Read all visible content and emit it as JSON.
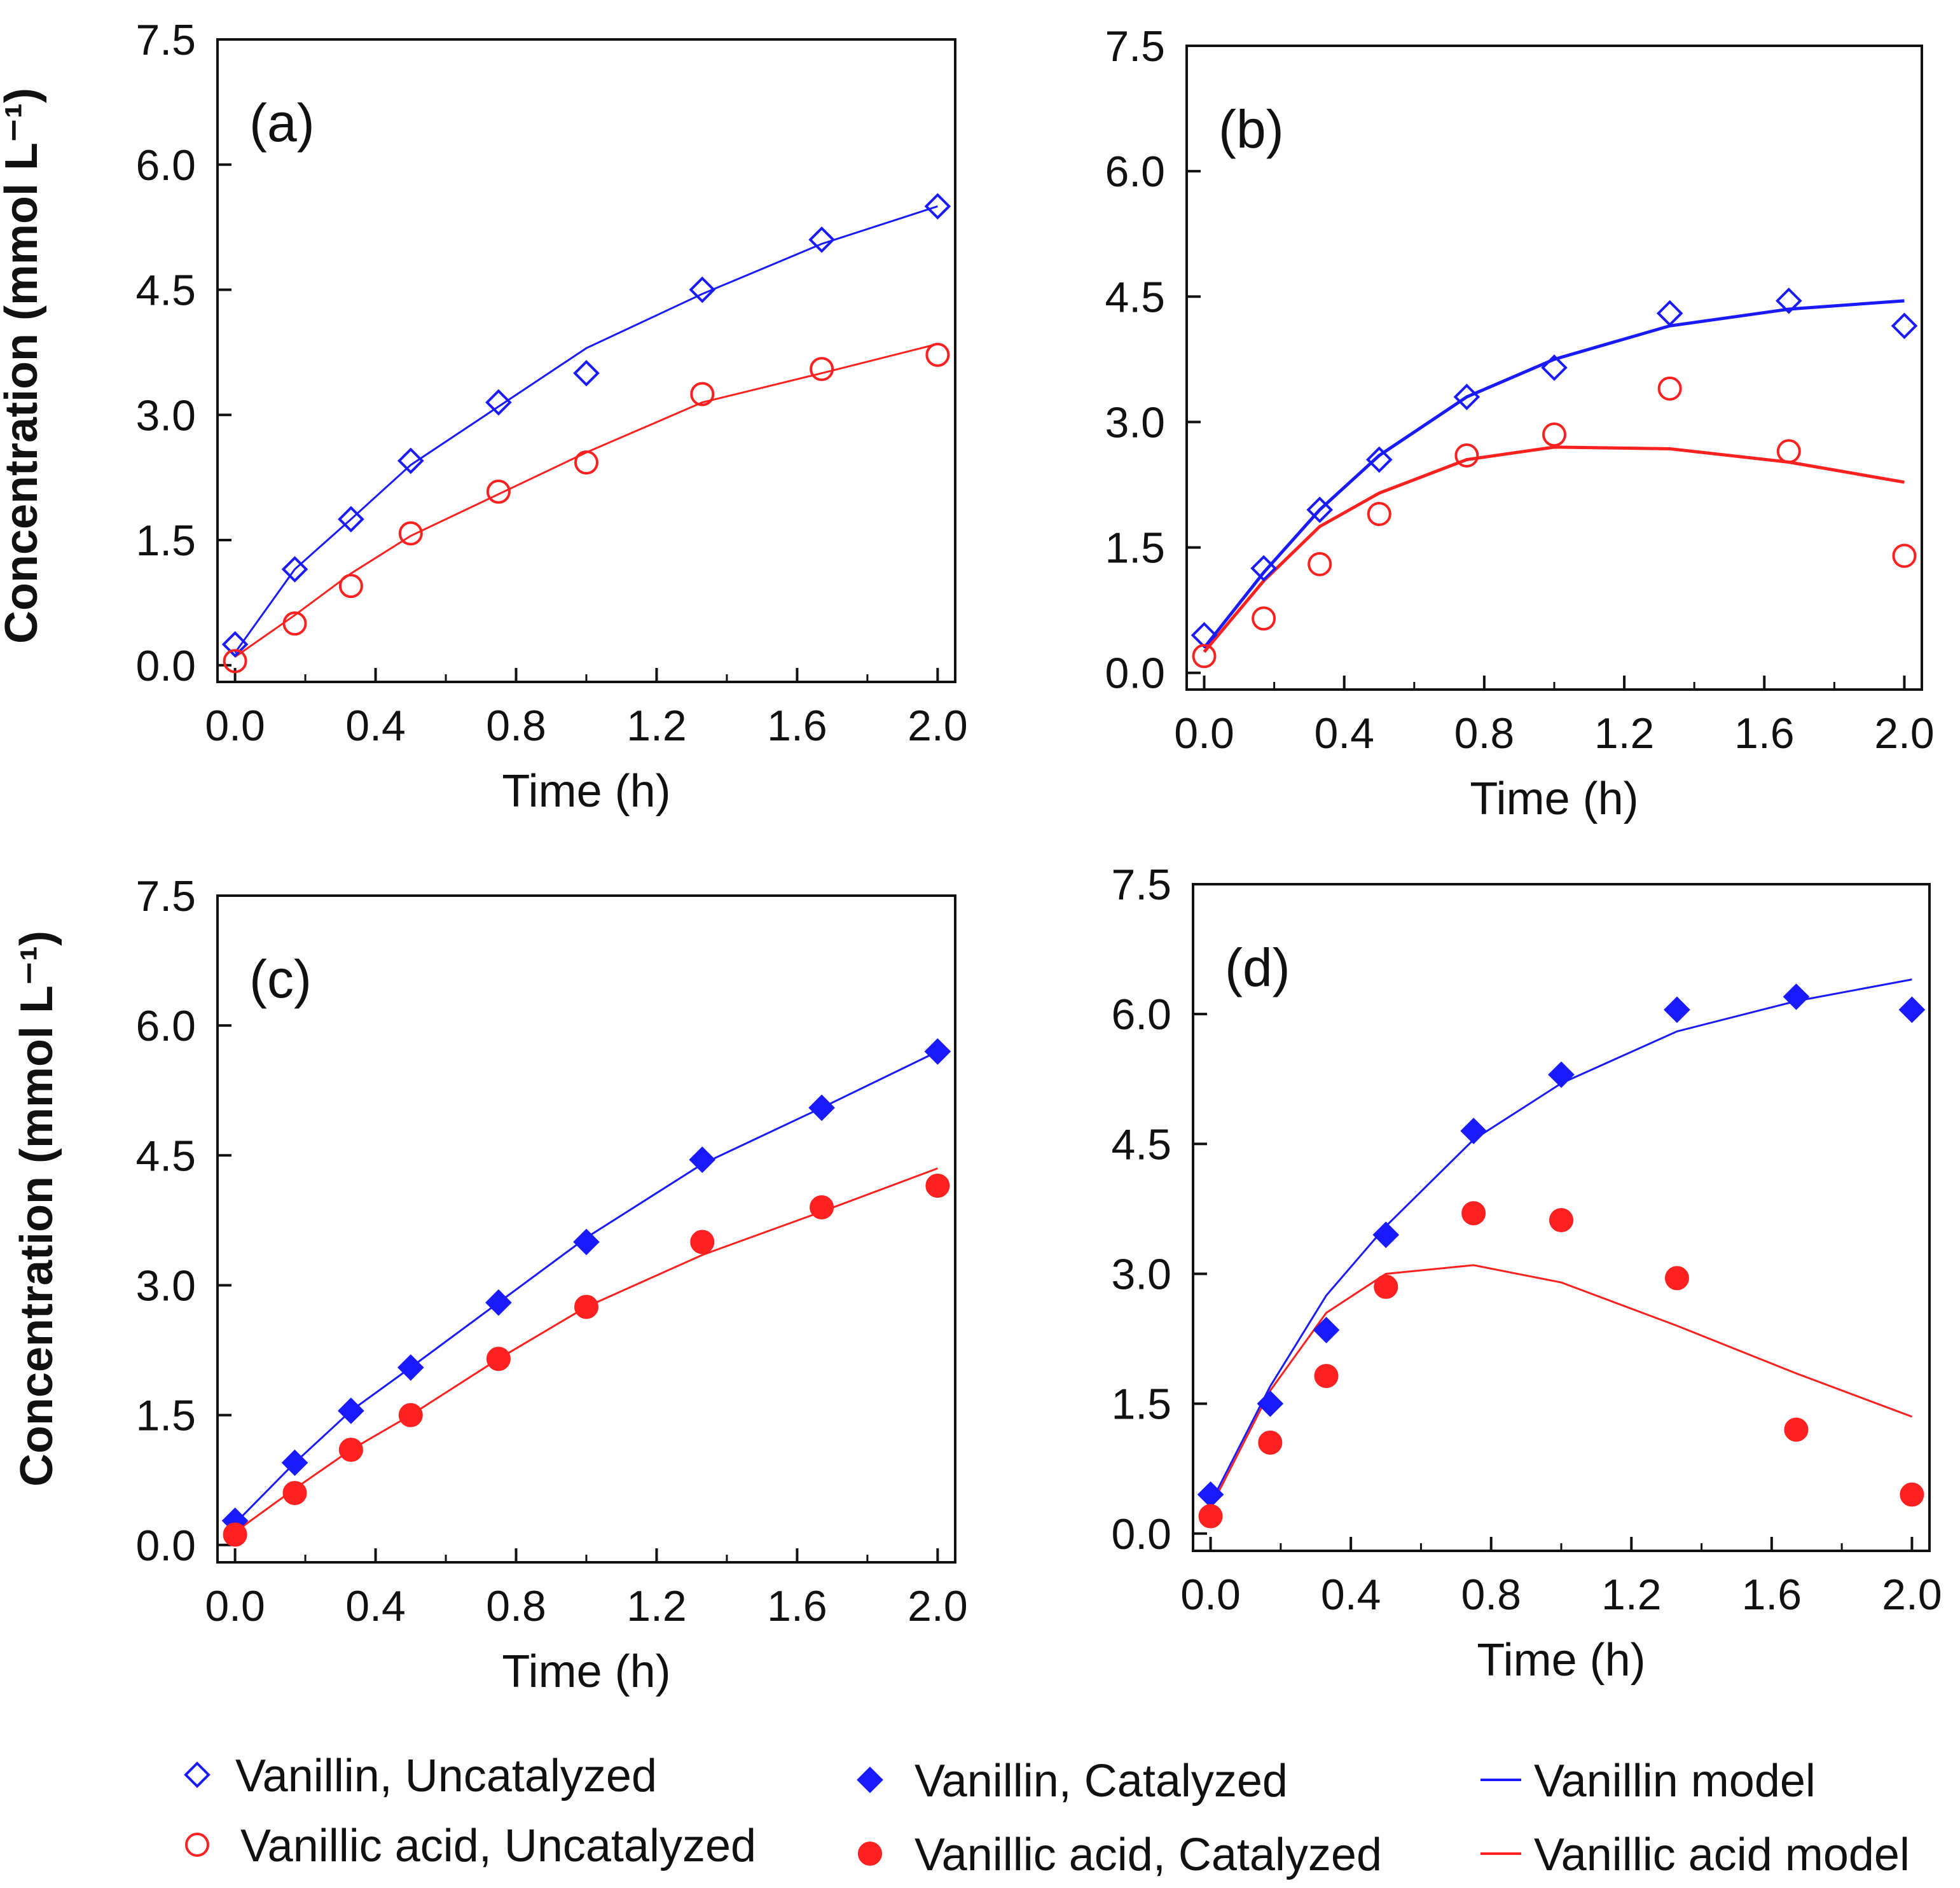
{
  "chart_data": [
    {
      "type": "scatter",
      "panel_label": "(a)",
      "xlabel": "Time (h)",
      "ylabel": "Concentration (mmol L⁻¹)",
      "xlim": [
        -0.05,
        2.05
      ],
      "ylim": [
        -0.2,
        7.5
      ],
      "xticks": [
        "0.0",
        "0.4",
        "0.8",
        "1.2",
        "1.6",
        "2.0"
      ],
      "yticks": [
        "0.0",
        "1.5",
        "3.0",
        "4.5",
        "6.0",
        "7.5"
      ],
      "series": [
        {
          "name": "Vanillin, Uncatalyzed",
          "style": "open-diamond",
          "color": "#1a1aff",
          "x": [
            0.0,
            0.17,
            0.33,
            0.5,
            0.75,
            1.0,
            1.33,
            1.67,
            2.0
          ],
          "y": [
            0.25,
            1.15,
            1.75,
            2.45,
            3.15,
            3.5,
            4.5,
            5.1,
            5.5
          ]
        },
        {
          "name": "Vanillic acid, Uncatalyzed",
          "style": "open-circle",
          "color": "#ff2020",
          "x": [
            0.0,
            0.17,
            0.33,
            0.5,
            0.75,
            1.0,
            1.33,
            1.67,
            2.0
          ],
          "y": [
            0.05,
            0.5,
            0.95,
            1.58,
            2.08,
            2.43,
            3.25,
            3.55,
            3.72
          ]
        },
        {
          "name": "Vanillin model",
          "style": "line",
          "color": "#1a1aff",
          "x": [
            0.0,
            0.17,
            0.33,
            0.5,
            0.75,
            1.0,
            1.33,
            1.67,
            2.0
          ],
          "y": [
            0.15,
            1.15,
            1.75,
            2.4,
            3.1,
            3.8,
            4.45,
            5.05,
            5.5
          ]
        },
        {
          "name": "Vanillic acid model",
          "style": "line",
          "color": "#ff2020",
          "x": [
            0.0,
            0.17,
            0.33,
            0.5,
            0.75,
            1.0,
            1.33,
            1.67,
            2.0
          ],
          "y": [
            0.1,
            0.6,
            1.1,
            1.55,
            2.05,
            2.55,
            3.15,
            3.5,
            3.85
          ]
        }
      ]
    },
    {
      "type": "scatter",
      "panel_label": "(b)",
      "xlabel": "Time (h)",
      "ylabel": "",
      "xlim": [
        -0.05,
        2.05
      ],
      "ylim": [
        -0.2,
        7.5
      ],
      "xticks": [
        "0.0",
        "0.4",
        "0.8",
        "1.2",
        "1.6",
        "2.0"
      ],
      "yticks": [
        "0.0",
        "1.5",
        "3.0",
        "4.5",
        "6.0",
        "7.5"
      ],
      "series": [
        {
          "name": "Vanillin, Uncatalyzed",
          "style": "open-diamond",
          "color": "#1a1aff",
          "x": [
            0.0,
            0.17,
            0.33,
            0.5,
            0.75,
            1.0,
            1.33,
            1.67,
            2.0
          ],
          "y": [
            0.45,
            1.25,
            1.95,
            2.55,
            3.3,
            3.65,
            4.3,
            4.45,
            4.15
          ]
        },
        {
          "name": "Vanillic acid, Uncatalyzed",
          "style": "open-circle",
          "color": "#ff2020",
          "x": [
            0.0,
            0.17,
            0.33,
            0.5,
            0.75,
            1.0,
            1.33,
            1.67,
            2.0
          ],
          "y": [
            0.2,
            0.65,
            1.3,
            1.9,
            2.6,
            2.85,
            3.4,
            2.65,
            1.4
          ]
        },
        {
          "name": "Vanillin model",
          "style": "line",
          "color": "#1a1aff",
          "x": [
            0.0,
            0.17,
            0.33,
            0.5,
            0.75,
            1.0,
            1.33,
            1.67,
            2.0
          ],
          "y": [
            0.3,
            1.2,
            1.95,
            2.6,
            3.3,
            3.75,
            4.15,
            4.35,
            4.45
          ]
        },
        {
          "name": "Vanillic acid model",
          "style": "line",
          "color": "#ff2020",
          "x": [
            0.0,
            0.17,
            0.33,
            0.5,
            0.75,
            1.0,
            1.33,
            1.67,
            2.0
          ],
          "y": [
            0.25,
            1.1,
            1.75,
            2.15,
            2.55,
            2.7,
            2.68,
            2.52,
            2.28
          ]
        }
      ]
    },
    {
      "type": "scatter",
      "panel_label": "(c)",
      "xlabel": "Time (h)",
      "ylabel": "Concentration (mmol L⁻¹)",
      "xlim": [
        -0.05,
        2.05
      ],
      "ylim": [
        -0.2,
        7.5
      ],
      "xticks": [
        "0.0",
        "0.4",
        "0.8",
        "1.2",
        "1.6",
        "2.0"
      ],
      "yticks": [
        "0.0",
        "1.5",
        "3.0",
        "4.5",
        "6.0",
        "7.5"
      ],
      "series": [
        {
          "name": "Vanillin, Catalyzed",
          "style": "filled-diamond",
          "color": "#1a1aff",
          "x": [
            0.0,
            0.17,
            0.33,
            0.5,
            0.75,
            1.0,
            1.33,
            1.67,
            2.0
          ],
          "y": [
            0.28,
            0.95,
            1.55,
            2.05,
            2.8,
            3.5,
            4.45,
            5.05,
            5.7
          ]
        },
        {
          "name": "Vanillic acid, Catalyzed",
          "style": "filled-circle",
          "color": "#ff2020",
          "x": [
            0.0,
            0.17,
            0.33,
            0.5,
            0.75,
            1.0,
            1.33,
            1.67,
            2.0
          ],
          "y": [
            0.12,
            0.6,
            1.1,
            1.5,
            2.15,
            2.75,
            3.5,
            3.9,
            4.15
          ]
        },
        {
          "name": "Vanillin model",
          "style": "line",
          "color": "#1a1aff",
          "x": [
            0.0,
            0.17,
            0.33,
            0.5,
            0.75,
            1.0,
            1.33,
            1.67,
            2.0
          ],
          "y": [
            0.25,
            0.95,
            1.55,
            2.05,
            2.8,
            3.55,
            4.4,
            5.05,
            5.7
          ]
        },
        {
          "name": "Vanillic acid model",
          "style": "line",
          "color": "#ff2020",
          "x": [
            0.0,
            0.17,
            0.33,
            0.5,
            0.75,
            1.0,
            1.33,
            1.67,
            2.0
          ],
          "y": [
            0.15,
            0.65,
            1.1,
            1.5,
            2.15,
            2.75,
            3.35,
            3.85,
            4.35
          ]
        }
      ]
    },
    {
      "type": "scatter",
      "panel_label": "(d)",
      "xlabel": "Time (h)",
      "ylabel": "",
      "xlim": [
        -0.05,
        2.05
      ],
      "ylim": [
        -0.2,
        7.5
      ],
      "xticks": [
        "0.0",
        "0.4",
        "0.8",
        "1.2",
        "1.6",
        "2.0"
      ],
      "yticks": [
        "0.0",
        "1.5",
        "3.0",
        "4.5",
        "6.0",
        "7.5"
      ],
      "series": [
        {
          "name": "Vanillin, Catalyzed",
          "style": "filled-diamond",
          "color": "#1a1aff",
          "x": [
            0.0,
            0.17,
            0.33,
            0.5,
            0.75,
            1.0,
            1.33,
            1.67,
            2.0
          ],
          "y": [
            0.45,
            1.5,
            2.35,
            3.45,
            4.65,
            5.3,
            6.05,
            6.2,
            6.05
          ]
        },
        {
          "name": "Vanillic acid, Catalyzed",
          "style": "filled-circle",
          "color": "#ff2020",
          "x": [
            0.0,
            0.17,
            0.33,
            0.5,
            0.75,
            1.0,
            1.33,
            1.67,
            2.0
          ],
          "y": [
            0.2,
            1.05,
            1.82,
            2.85,
            3.7,
            3.62,
            2.95,
            1.2,
            0.45
          ]
        },
        {
          "name": "Vanillin model",
          "style": "line",
          "color": "#1a1aff",
          "x": [
            0.0,
            0.17,
            0.33,
            0.5,
            0.75,
            1.0,
            1.33,
            1.67,
            2.0
          ],
          "y": [
            0.35,
            1.7,
            2.75,
            3.55,
            4.55,
            5.2,
            5.8,
            6.15,
            6.4
          ]
        },
        {
          "name": "Vanillic acid model",
          "style": "line",
          "color": "#ff2020",
          "x": [
            0.0,
            0.17,
            0.33,
            0.5,
            0.75,
            1.0,
            1.33,
            1.67,
            2.0
          ],
          "y": [
            0.3,
            1.65,
            2.55,
            3.0,
            3.1,
            2.9,
            2.4,
            1.85,
            1.35
          ]
        }
      ]
    }
  ],
  "legend": [
    {
      "label": "Vanillin, Uncatalyzed",
      "style": "open-diamond",
      "color": "#1a1aff"
    },
    {
      "label": "Vanillic acid, Uncatalyzed",
      "style": "open-circle",
      "color": "#ff2020"
    },
    {
      "label": "Vanillin, Catalyzed",
      "style": "filled-diamond",
      "color": "#1a1aff"
    },
    {
      "label": "Vanillic acid, Catalyzed",
      "style": "filled-circle",
      "color": "#ff2020"
    },
    {
      "label": "Vanillin model",
      "style": "line",
      "color": "#1a1aff"
    },
    {
      "label": "Vanillic acid model",
      "style": "line",
      "color": "#ff2020"
    }
  ]
}
